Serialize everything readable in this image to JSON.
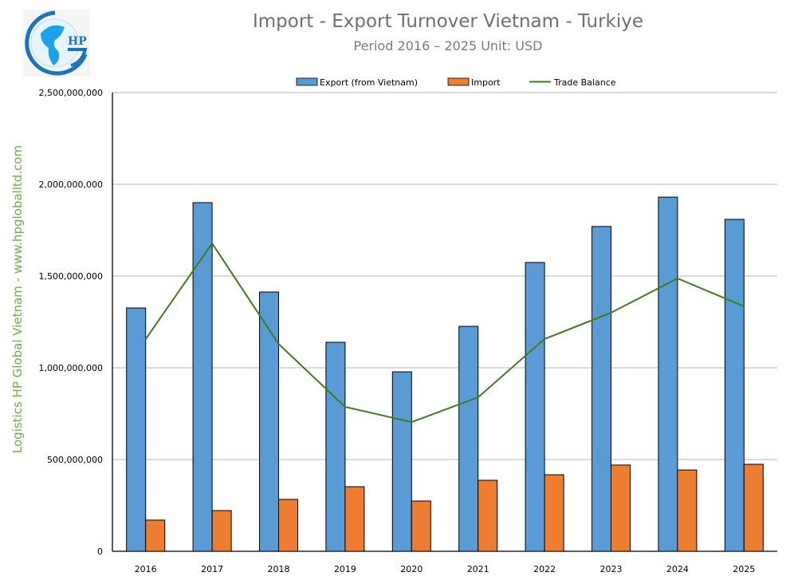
{
  "logo_text": "HP",
  "side_label": "Logistics HP Global Vietnam - www.hpgloballtd.com",
  "chart_data": {
    "type": "bar",
    "title": "Import - Export Turnover Vietnam - Turkiye",
    "subtitle": "Period 2016 – 2025  Unit: USD",
    "categories": [
      "2016",
      "2017",
      "2018",
      "2019",
      "2020",
      "2021",
      "2022",
      "2023",
      "2024",
      "2025"
    ],
    "series": [
      {
        "name": "Export (from Vietnam)",
        "kind": "bar",
        "color": "#5b9bd5",
        "values": [
          1326000000,
          1900000000,
          1413000000,
          1139000000,
          978000000,
          1226000000,
          1574000000,
          1770000000,
          1930000000,
          1809000000
        ]
      },
      {
        "name": "Import",
        "kind": "bar",
        "color": "#ed7d31",
        "values": [
          170000000,
          222000000,
          283000000,
          352000000,
          274000000,
          387000000,
          417000000,
          470000000,
          443000000,
          474000000
        ]
      },
      {
        "name": "Trade Balance",
        "kind": "line",
        "color": "#3e7d1e",
        "values": [
          1156000000,
          1678000000,
          1130000000,
          787000000,
          704000000,
          839000000,
          1157000000,
          1300000000,
          1487000000,
          1335000000
        ]
      }
    ],
    "yticks": [
      "0",
      "500,000,000",
      "1,000,000,000",
      "1,500,000,000",
      "2,000,000,000",
      "2,500,000,000"
    ],
    "ylim": [
      0,
      2500000000
    ],
    "grid": true,
    "legend": "top"
  }
}
